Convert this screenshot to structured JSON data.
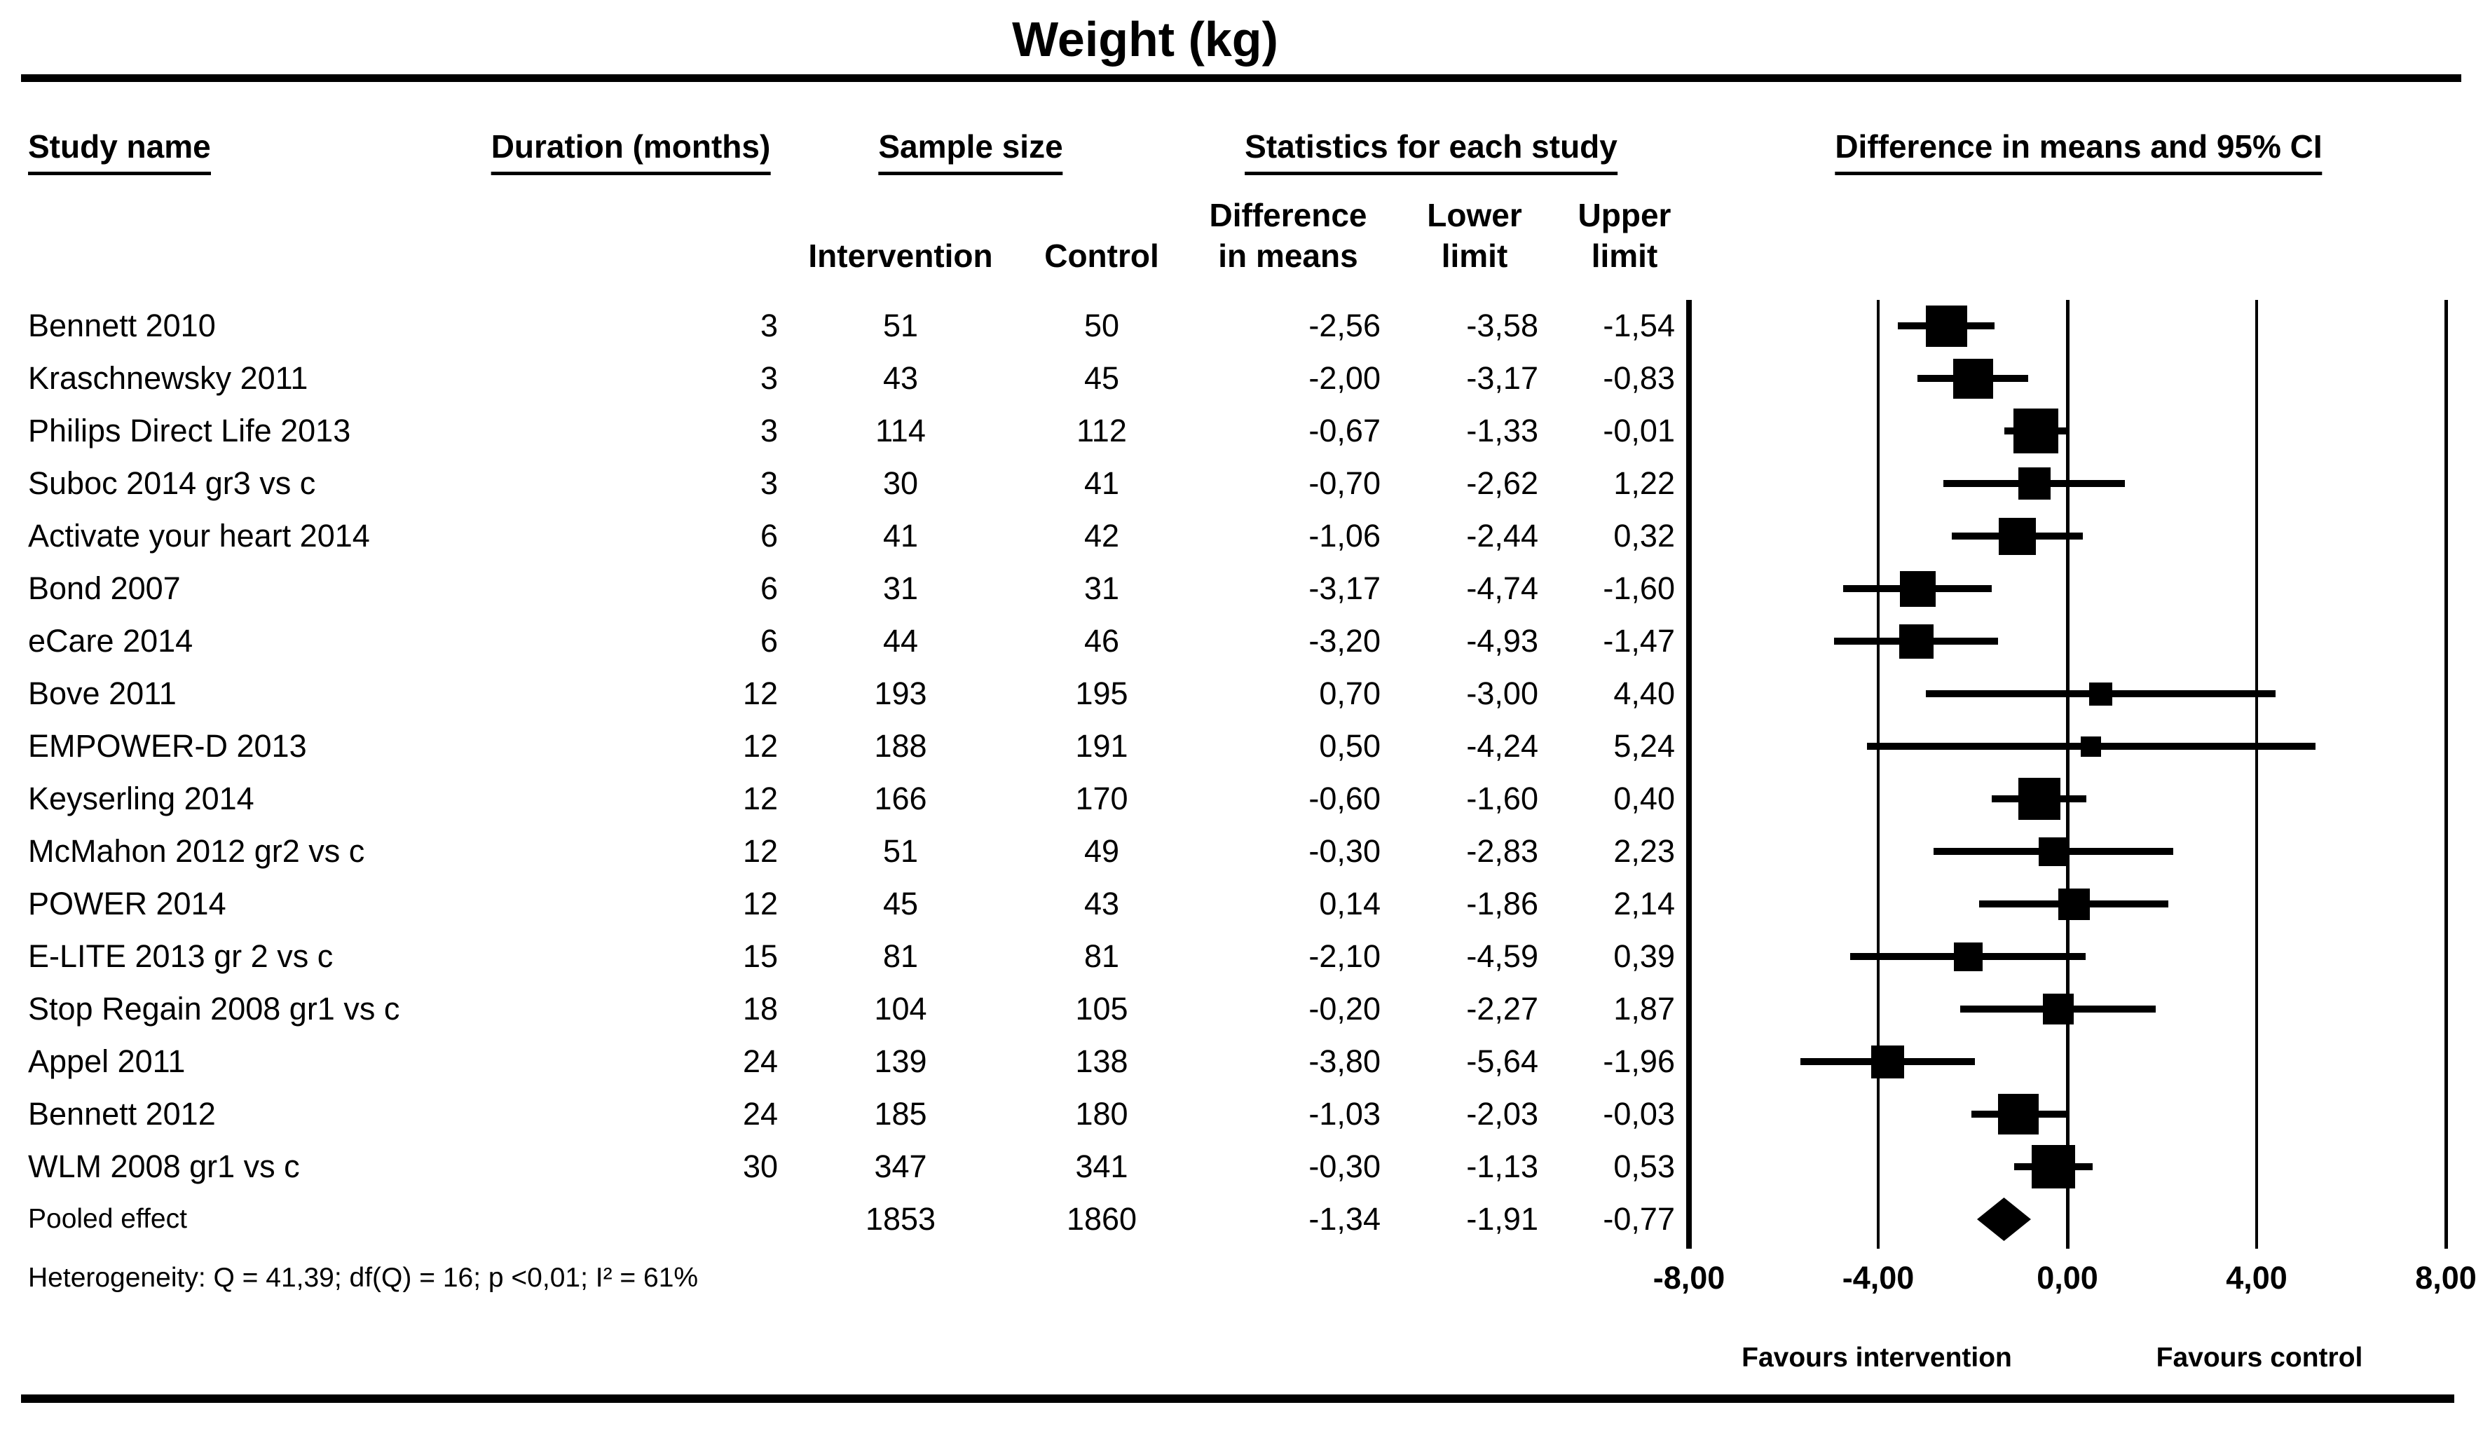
{
  "title": "Weight (kg)",
  "colors": {
    "ink": "#000000",
    "background": "#ffffff"
  },
  "header": {
    "study": "Study name",
    "duration": "Duration (months)",
    "sample_size": "Sample size",
    "statistics": "Statistics for each study",
    "ci": "Difference in means and 95% CI",
    "sub": {
      "intervention": "Intervention",
      "control": "Control",
      "difference": [
        "Difference",
        "in means"
      ],
      "lower": [
        "Lower",
        "limit"
      ],
      "upper": [
        "Upper",
        "limit"
      ]
    }
  },
  "chart_data": {
    "type": "scatter",
    "subtype": "forest-plot",
    "title": "Weight (kg)",
    "xlabel": "Difference in means and 95% CI",
    "xlim": [
      -8,
      8
    ],
    "grid": "vertical-reference-lines",
    "x_ticks": [
      {
        "value": -8,
        "label": "-8,00"
      },
      {
        "value": -4,
        "label": "-4,00"
      },
      {
        "value": 0,
        "label": "0,00"
      },
      {
        "value": 4,
        "label": "4,00"
      },
      {
        "value": 8,
        "label": "8,00"
      }
    ],
    "favours_left": "Favours intervention",
    "favours_right": "Favours control",
    "studies": [
      {
        "name": "Bennett 2010",
        "duration_months": "3",
        "n_intervention": "51",
        "n_control": "50",
        "diff": "-2,56",
        "lower": "-3,58",
        "upper": "-1,54",
        "box": 59
      },
      {
        "name": "Kraschnewsky 2011",
        "duration_months": "3",
        "n_intervention": "43",
        "n_control": "45",
        "diff": "-2,00",
        "lower": "-3,17",
        "upper": "-0,83",
        "box": 57
      },
      {
        "name": "Philips Direct Life 2013",
        "duration_months": "3",
        "n_intervention": "114",
        "n_control": "112",
        "diff": "-0,67",
        "lower": "-1,33",
        "upper": "-0,01",
        "box": 64
      },
      {
        "name": "Suboc 2014 gr3 vs c",
        "duration_months": "3",
        "n_intervention": "30",
        "n_control": "41",
        "diff": "-0,70",
        "lower": "-2,62",
        "upper": "1,22",
        "box": 46
      },
      {
        "name": "Activate your heart 2014",
        "duration_months": "6",
        "n_intervention": "41",
        "n_control": "42",
        "diff": "-1,06",
        "lower": "-2,44",
        "upper": "0,32",
        "box": 53
      },
      {
        "name": "Bond 2007",
        "duration_months": "6",
        "n_intervention": "31",
        "n_control": "31",
        "diff": "-3,17",
        "lower": "-4,74",
        "upper": "-1,60",
        "box": 51
      },
      {
        "name": "eCare 2014",
        "duration_months": "6",
        "n_intervention": "44",
        "n_control": "46",
        "diff": "-3,20",
        "lower": "-4,93",
        "upper": "-1,47",
        "box": 49
      },
      {
        "name": "Bove 2011",
        "duration_months": "12",
        "n_intervention": "193",
        "n_control": "195",
        "diff": "0,70",
        "lower": "-3,00",
        "upper": "4,40",
        "box": 33
      },
      {
        "name": "EMPOWER-D 2013",
        "duration_months": "12",
        "n_intervention": "188",
        "n_control": "191",
        "diff": "0,50",
        "lower": "-4,24",
        "upper": "5,24",
        "box": 29
      },
      {
        "name": "Keyserling 2014",
        "duration_months": "12",
        "n_intervention": "166",
        "n_control": "170",
        "diff": "-0,60",
        "lower": "-1,60",
        "upper": "0,40",
        "box": 60
      },
      {
        "name": "McMahon 2012 gr2 vs c",
        "duration_months": "12",
        "n_intervention": "51",
        "n_control": "49",
        "diff": "-0,30",
        "lower": "-2,83",
        "upper": "2,23",
        "box": 41
      },
      {
        "name": "POWER 2014",
        "duration_months": "12",
        "n_intervention": "45",
        "n_control": "43",
        "diff": "0,14",
        "lower": "-1,86",
        "upper": "2,14",
        "box": 45
      },
      {
        "name": "E-LITE 2013 gr 2 vs c",
        "duration_months": "15",
        "n_intervention": "81",
        "n_control": "81",
        "diff": "-2,10",
        "lower": "-4,59",
        "upper": "0,39",
        "box": 41
      },
      {
        "name": "Stop Regain 2008 gr1 vs c",
        "duration_months": "18",
        "n_intervention": "104",
        "n_control": "105",
        "diff": "-0,20",
        "lower": "-2,27",
        "upper": "1,87",
        "box": 44
      },
      {
        "name": "Appel 2011",
        "duration_months": "24",
        "n_intervention": "139",
        "n_control": "138",
        "diff": "-3,80",
        "lower": "-5,64",
        "upper": "-1,96",
        "box": 47
      },
      {
        "name": "Bennett 2012",
        "duration_months": "24",
        "n_intervention": "185",
        "n_control": "180",
        "diff": "-1,03",
        "lower": "-2,03",
        "upper": "-0,03",
        "box": 58
      },
      {
        "name": "WLM 2008 gr1 vs c",
        "duration_months": "30",
        "n_intervention": "347",
        "n_control": "341",
        "diff": "-0,30",
        "lower": "-1,13",
        "upper": "0,53",
        "box": 62
      }
    ],
    "pooled": {
      "name": "Pooled effect",
      "duration_months": "",
      "n_intervention": "1853",
      "n_control": "1860",
      "diff": "-1,34",
      "lower": "-1,91",
      "upper": "-0,77"
    }
  },
  "footer": {
    "heterogeneity": "Heterogeneity: Q = 41,39; df(Q) = 16; p <0,01; I² = 61%"
  }
}
